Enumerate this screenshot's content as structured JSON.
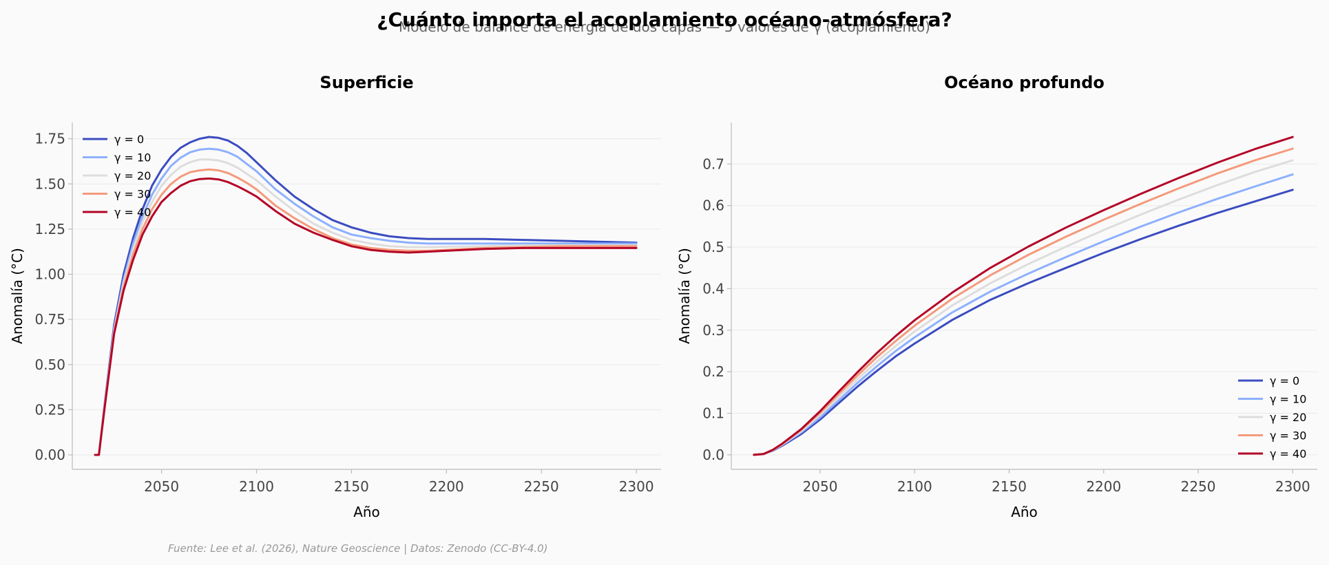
{
  "chart_data": {
    "title": "¿Cuánto importa el acoplamiento océano-atmósfera?",
    "subtitle": "Modelo de balance de energía de dos capas — 5 valores de γ (acoplamiento)",
    "footer": "Fuente: Lee et al. (2026), Nature Geoscience | Datos: Zenodo (CC-BY-4.0)",
    "charts": [
      {
        "id": "surface",
        "type": "line",
        "title": "Superficie",
        "xlabel": "Año",
        "ylabel": "Anomalía (°C)",
        "xlim": [
          2003,
          2313
        ],
        "ylim": [
          -0.08,
          1.84
        ],
        "xticks": [
          2050,
          2100,
          2150,
          2200,
          2250,
          2300
        ],
        "yticks": [
          0.0,
          0.25,
          0.5,
          0.75,
          1.0,
          1.25,
          1.5,
          1.75
        ],
        "ytick_labels": [
          "0.00",
          "0.25",
          "0.50",
          "0.75",
          "1.00",
          "1.25",
          "1.50",
          "1.75"
        ],
        "legend_position": "top-left",
        "x": [
          2015,
          2017,
          2020,
          2025,
          2030,
          2035,
          2040,
          2045,
          2050,
          2055,
          2060,
          2065,
          2070,
          2075,
          2080,
          2085,
          2090,
          2095,
          2100,
          2110,
          2120,
          2130,
          2140,
          2150,
          2160,
          2170,
          2180,
          2190,
          2200,
          2220,
          2240,
          2260,
          2280,
          2300
        ],
        "series": [
          {
            "name": "γ = 0",
            "color": "#3b4cc0",
            "values": [
              0.0,
              0.0,
              0.28,
              0.72,
              1.0,
              1.2,
              1.36,
              1.49,
              1.58,
              1.65,
              1.7,
              1.73,
              1.75,
              1.76,
              1.755,
              1.74,
              1.71,
              1.67,
              1.62,
              1.52,
              1.43,
              1.36,
              1.3,
              1.26,
              1.23,
              1.21,
              1.2,
              1.195,
              1.195,
              1.195,
              1.19,
              1.185,
              1.18,
              1.175
            ]
          },
          {
            "name": "γ = 10",
            "color": "#8db0fe",
            "values": [
              0.0,
              0.0,
              0.27,
              0.7,
              0.97,
              1.17,
              1.32,
              1.44,
              1.53,
              1.6,
              1.645,
              1.675,
              1.69,
              1.695,
              1.69,
              1.675,
              1.65,
              1.61,
              1.57,
              1.47,
              1.39,
              1.32,
              1.26,
              1.22,
              1.2,
              1.185,
              1.175,
              1.17,
              1.17,
              1.17,
              1.17,
              1.17,
              1.17,
              1.17
            ]
          },
          {
            "name": "γ = 20",
            "color": "#dddddd",
            "values": [
              0.0,
              0.0,
              0.27,
              0.69,
              0.95,
              1.14,
              1.29,
              1.4,
              1.49,
              1.55,
              1.595,
              1.62,
              1.635,
              1.635,
              1.63,
              1.615,
              1.59,
              1.555,
              1.52,
              1.43,
              1.35,
              1.28,
              1.23,
              1.19,
              1.17,
              1.155,
              1.15,
              1.15,
              1.152,
              1.155,
              1.16,
              1.16,
              1.16,
              1.16
            ]
          },
          {
            "name": "γ = 30",
            "color": "#f49a7b",
            "values": [
              0.0,
              0.0,
              0.26,
              0.68,
              0.93,
              1.11,
              1.25,
              1.36,
              1.44,
              1.5,
              1.54,
              1.565,
              1.575,
              1.58,
              1.575,
              1.56,
              1.535,
              1.505,
              1.47,
              1.38,
              1.31,
              1.25,
              1.2,
              1.165,
              1.145,
              1.135,
              1.13,
              1.13,
              1.135,
              1.145,
              1.15,
              1.155,
              1.155,
              1.155
            ]
          },
          {
            "name": "γ = 40",
            "color": "#b40426",
            "values": [
              0.0,
              0.0,
              0.26,
              0.67,
              0.91,
              1.08,
              1.22,
              1.32,
              1.4,
              1.45,
              1.49,
              1.515,
              1.527,
              1.53,
              1.525,
              1.51,
              1.487,
              1.46,
              1.43,
              1.35,
              1.28,
              1.23,
              1.19,
              1.155,
              1.135,
              1.125,
              1.12,
              1.125,
              1.13,
              1.14,
              1.145,
              1.145,
              1.145,
              1.145
            ]
          }
        ]
      },
      {
        "id": "deep",
        "type": "line",
        "title": "Océano profundo",
        "xlabel": "Año",
        "ylabel": "Anomalía (°C)",
        "xlim": [
          2003,
          2313
        ],
        "ylim": [
          -0.035,
          0.8
        ],
        "xticks": [
          2050,
          2100,
          2150,
          2200,
          2250,
          2300
        ],
        "yticks": [
          0.0,
          0.1,
          0.2,
          0.3,
          0.4,
          0.5,
          0.6,
          0.7
        ],
        "ytick_labels": [
          "0.0",
          "0.1",
          "0.2",
          "0.3",
          "0.4",
          "0.5",
          "0.6",
          "0.7"
        ],
        "legend_position": "bottom-right",
        "x": [
          2015,
          2020,
          2025,
          2030,
          2040,
          2050,
          2060,
          2070,
          2080,
          2090,
          2100,
          2120,
          2140,
          2160,
          2180,
          2200,
          2220,
          2240,
          2260,
          2280,
          2300
        ],
        "series": [
          {
            "name": "γ = 0",
            "color": "#3b4cc0",
            "values": [
              0.0,
              0.002,
              0.01,
              0.022,
              0.05,
              0.085,
              0.125,
              0.165,
              0.202,
              0.237,
              0.268,
              0.325,
              0.373,
              0.413,
              0.45,
              0.486,
              0.52,
              0.552,
              0.582,
              0.61,
              0.638
            ]
          },
          {
            "name": "γ = 10",
            "color": "#8db0fe",
            "values": [
              0.0,
              0.002,
              0.011,
              0.024,
              0.054,
              0.09,
              0.132,
              0.174,
              0.213,
              0.25,
              0.283,
              0.343,
              0.393,
              0.436,
              0.476,
              0.514,
              0.55,
              0.584,
              0.616,
              0.646,
              0.675
            ]
          },
          {
            "name": "γ = 20",
            "color": "#dddddd",
            "values": [
              0.0,
              0.002,
              0.011,
              0.025,
              0.057,
              0.096,
              0.14,
              0.183,
              0.224,
              0.262,
              0.297,
              0.36,
              0.413,
              0.459,
              0.501,
              0.541,
              0.579,
              0.615,
              0.649,
              0.681,
              0.709
            ]
          },
          {
            "name": "γ = 30",
            "color": "#f49a7b",
            "values": [
              0.0,
              0.002,
              0.012,
              0.026,
              0.06,
              0.101,
              0.147,
              0.192,
              0.235,
              0.274,
              0.311,
              0.376,
              0.432,
              0.481,
              0.525,
              0.566,
              0.605,
              0.642,
              0.677,
              0.709,
              0.737
            ]
          },
          {
            "name": "γ = 40",
            "color": "#b40426",
            "values": [
              0.0,
              0.002,
              0.012,
              0.027,
              0.062,
              0.105,
              0.153,
              0.2,
              0.245,
              0.286,
              0.324,
              0.391,
              0.45,
              0.501,
              0.547,
              0.589,
              0.629,
              0.667,
              0.703,
              0.736,
              0.765
            ]
          }
        ]
      }
    ]
  }
}
